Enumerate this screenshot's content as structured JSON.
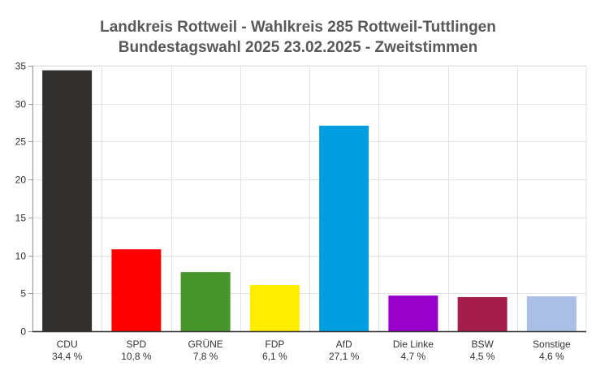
{
  "chart_data": {
    "type": "bar",
    "title": "Landkreis Rottweil - Wahlkreis 285 Rottweil-Tuttlingen",
    "subtitle": "Bundestagswahl 2025 23.02.2025  - Zweitstimmen",
    "categories": [
      "CDU",
      "SPD",
      "GRÜNE",
      "FDP",
      "AfD",
      "Die Linke",
      "BSW",
      "Sonstige"
    ],
    "values": [
      34.4,
      10.8,
      7.8,
      6.1,
      27.1,
      4.7,
      4.5,
      4.6
    ],
    "value_labels": [
      "34,4 %",
      "10,8 %",
      "7,8 %",
      "6,1 %",
      "27,1 %",
      "4,7 %",
      "4,5 %",
      "4,6 %"
    ],
    "colors": [
      "#32302e",
      "#ff0000",
      "#46962b",
      "#ffed00",
      "#009ee0",
      "#9900cc",
      "#a51d4a",
      "#aabfe6"
    ],
    "ylim": [
      0,
      35
    ],
    "yticks": [
      0,
      5,
      10,
      15,
      20,
      25,
      30,
      35
    ],
    "grid": true,
    "xlabel": "",
    "ylabel": ""
  }
}
